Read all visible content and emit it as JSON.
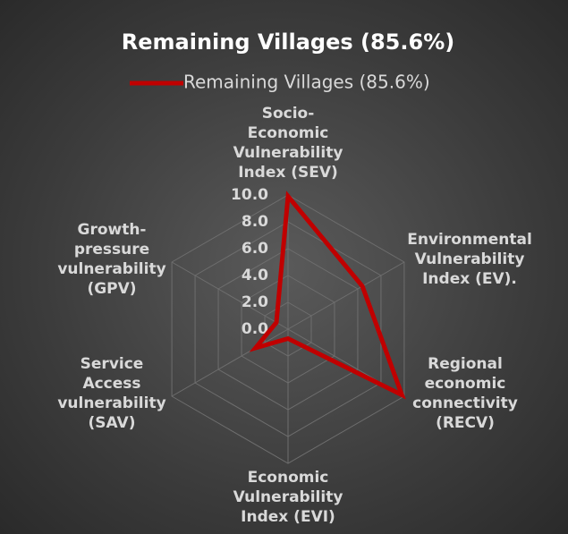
{
  "chart_data": {
    "type": "radar",
    "title": "Remaining Villages (85.6%)",
    "categories": [
      "Socio-Economic Vulnerability Index (SEV)",
      "Environmental Vulnerability Index (EV).",
      "Regional economic connectivity (RECV)",
      "Economic Vulnerability Index (EVI)",
      "Service Access vulnerability (SAV)",
      "Growth-pressure vulnerability (GPV)"
    ],
    "series": [
      {
        "name": "Remaining Villages (85.6%)",
        "color": "#c00000",
        "values": [
          9.9,
          6.4,
          9.8,
          0.7,
          2.8,
          1.0
        ]
      }
    ],
    "rlim": [
      0,
      10
    ],
    "rticks": [
      {
        "value": 0,
        "label": "0.0"
      },
      {
        "value": 2,
        "label": "2.0"
      },
      {
        "value": 4,
        "label": "4.0"
      },
      {
        "value": 6,
        "label": "6.0"
      },
      {
        "value": 8,
        "label": "8.0"
      },
      {
        "value": 10,
        "label": "10.0"
      }
    ],
    "grid": true,
    "legend": "top"
  }
}
